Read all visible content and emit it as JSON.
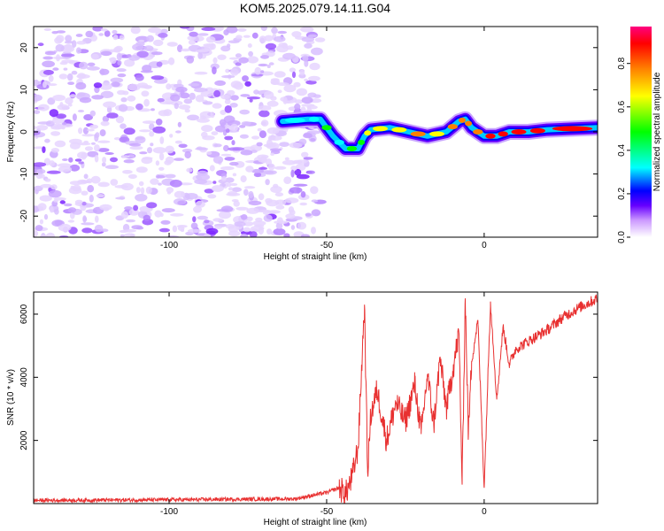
{
  "title": "KOM5.2025.079.14.11.G04",
  "chart_data": [
    {
      "type": "heatmap",
      "xlabel": "Height of straight line (km)",
      "ylabel": "Frequency (Hz)",
      "xlim": [
        -143,
        36
      ],
      "ylim": [
        -25,
        25
      ],
      "xticks": [
        -100,
        -50,
        0
      ],
      "yticks": [
        -20,
        -10,
        0,
        10,
        20
      ],
      "colorbar": {
        "label": "Normalized spectral amplitude",
        "range": [
          0,
          0.97
        ],
        "ticks": [
          0.0,
          0.2,
          0.4,
          0.6,
          0.8
        ],
        "colormap": [
          "#ffffff",
          "#cc99ff",
          "#6600ff",
          "#0000ff",
          "#00ffff",
          "#00ff00",
          "#ffff00",
          "#ff8000",
          "#ff0000",
          "#ff0080"
        ]
      },
      "noise_region": {
        "x": [
          -143,
          -52
        ],
        "f": [
          -25,
          25
        ],
        "amplitude": 0.1
      },
      "signal_ridge": [
        {
          "x": -64,
          "f": 2.5
        },
        {
          "x": -56,
          "f": 3
        },
        {
          "x": -52,
          "f": 3
        },
        {
          "x": -48,
          "f": -1
        },
        {
          "x": -44,
          "f": -4
        },
        {
          "x": -40,
          "f": -4
        },
        {
          "x": -38,
          "f": -1
        },
        {
          "x": -36,
          "f": 0.5
        },
        {
          "x": -30,
          "f": 1
        },
        {
          "x": -24,
          "f": 0
        },
        {
          "x": -18,
          "f": -1
        },
        {
          "x": -12,
          "f": 0
        },
        {
          "x": -8,
          "f": 2.5
        },
        {
          "x": -6,
          "f": 3
        },
        {
          "x": -4,
          "f": 1
        },
        {
          "x": 0,
          "f": -1
        },
        {
          "x": 4,
          "f": -1
        },
        {
          "x": 8,
          "f": 0
        },
        {
          "x": 14,
          "f": 0
        },
        {
          "x": 20,
          "f": 0.5
        },
        {
          "x": 36,
          "f": 1
        }
      ]
    },
    {
      "type": "line",
      "xlabel": "Height of straight line (km)",
      "ylabel": "SNR (10 * v/v)",
      "xlim": [
        -143,
        36
      ],
      "ylim": [
        0,
        6700
      ],
      "xticks": [
        -100,
        -50,
        0
      ],
      "yticks": [
        2000,
        4000,
        6000
      ],
      "color": "#e83030",
      "x": [
        -143,
        -100,
        -60,
        -50,
        -46,
        -44,
        -42,
        -40,
        -38,
        -37,
        -36,
        -34,
        -31,
        -28,
        -25,
        -22,
        -20,
        -18,
        -16,
        -14,
        -12,
        -10,
        -8,
        -7,
        -6,
        -5,
        -4,
        -2,
        0,
        2,
        4,
        6,
        8,
        10,
        15,
        20,
        25,
        30,
        36
      ],
      "values": [
        100,
        120,
        150,
        350,
        500,
        300,
        800,
        1800,
        6300,
        1000,
        2800,
        3600,
        2000,
        3200,
        2600,
        3800,
        2200,
        4100,
        2500,
        4600,
        3000,
        4200,
        5400,
        600,
        6500,
        2200,
        4500,
        5800,
        500,
        6400,
        3300,
        5600,
        4400,
        4900,
        5200,
        5500,
        5900,
        6200,
        6500
      ]
    }
  ]
}
